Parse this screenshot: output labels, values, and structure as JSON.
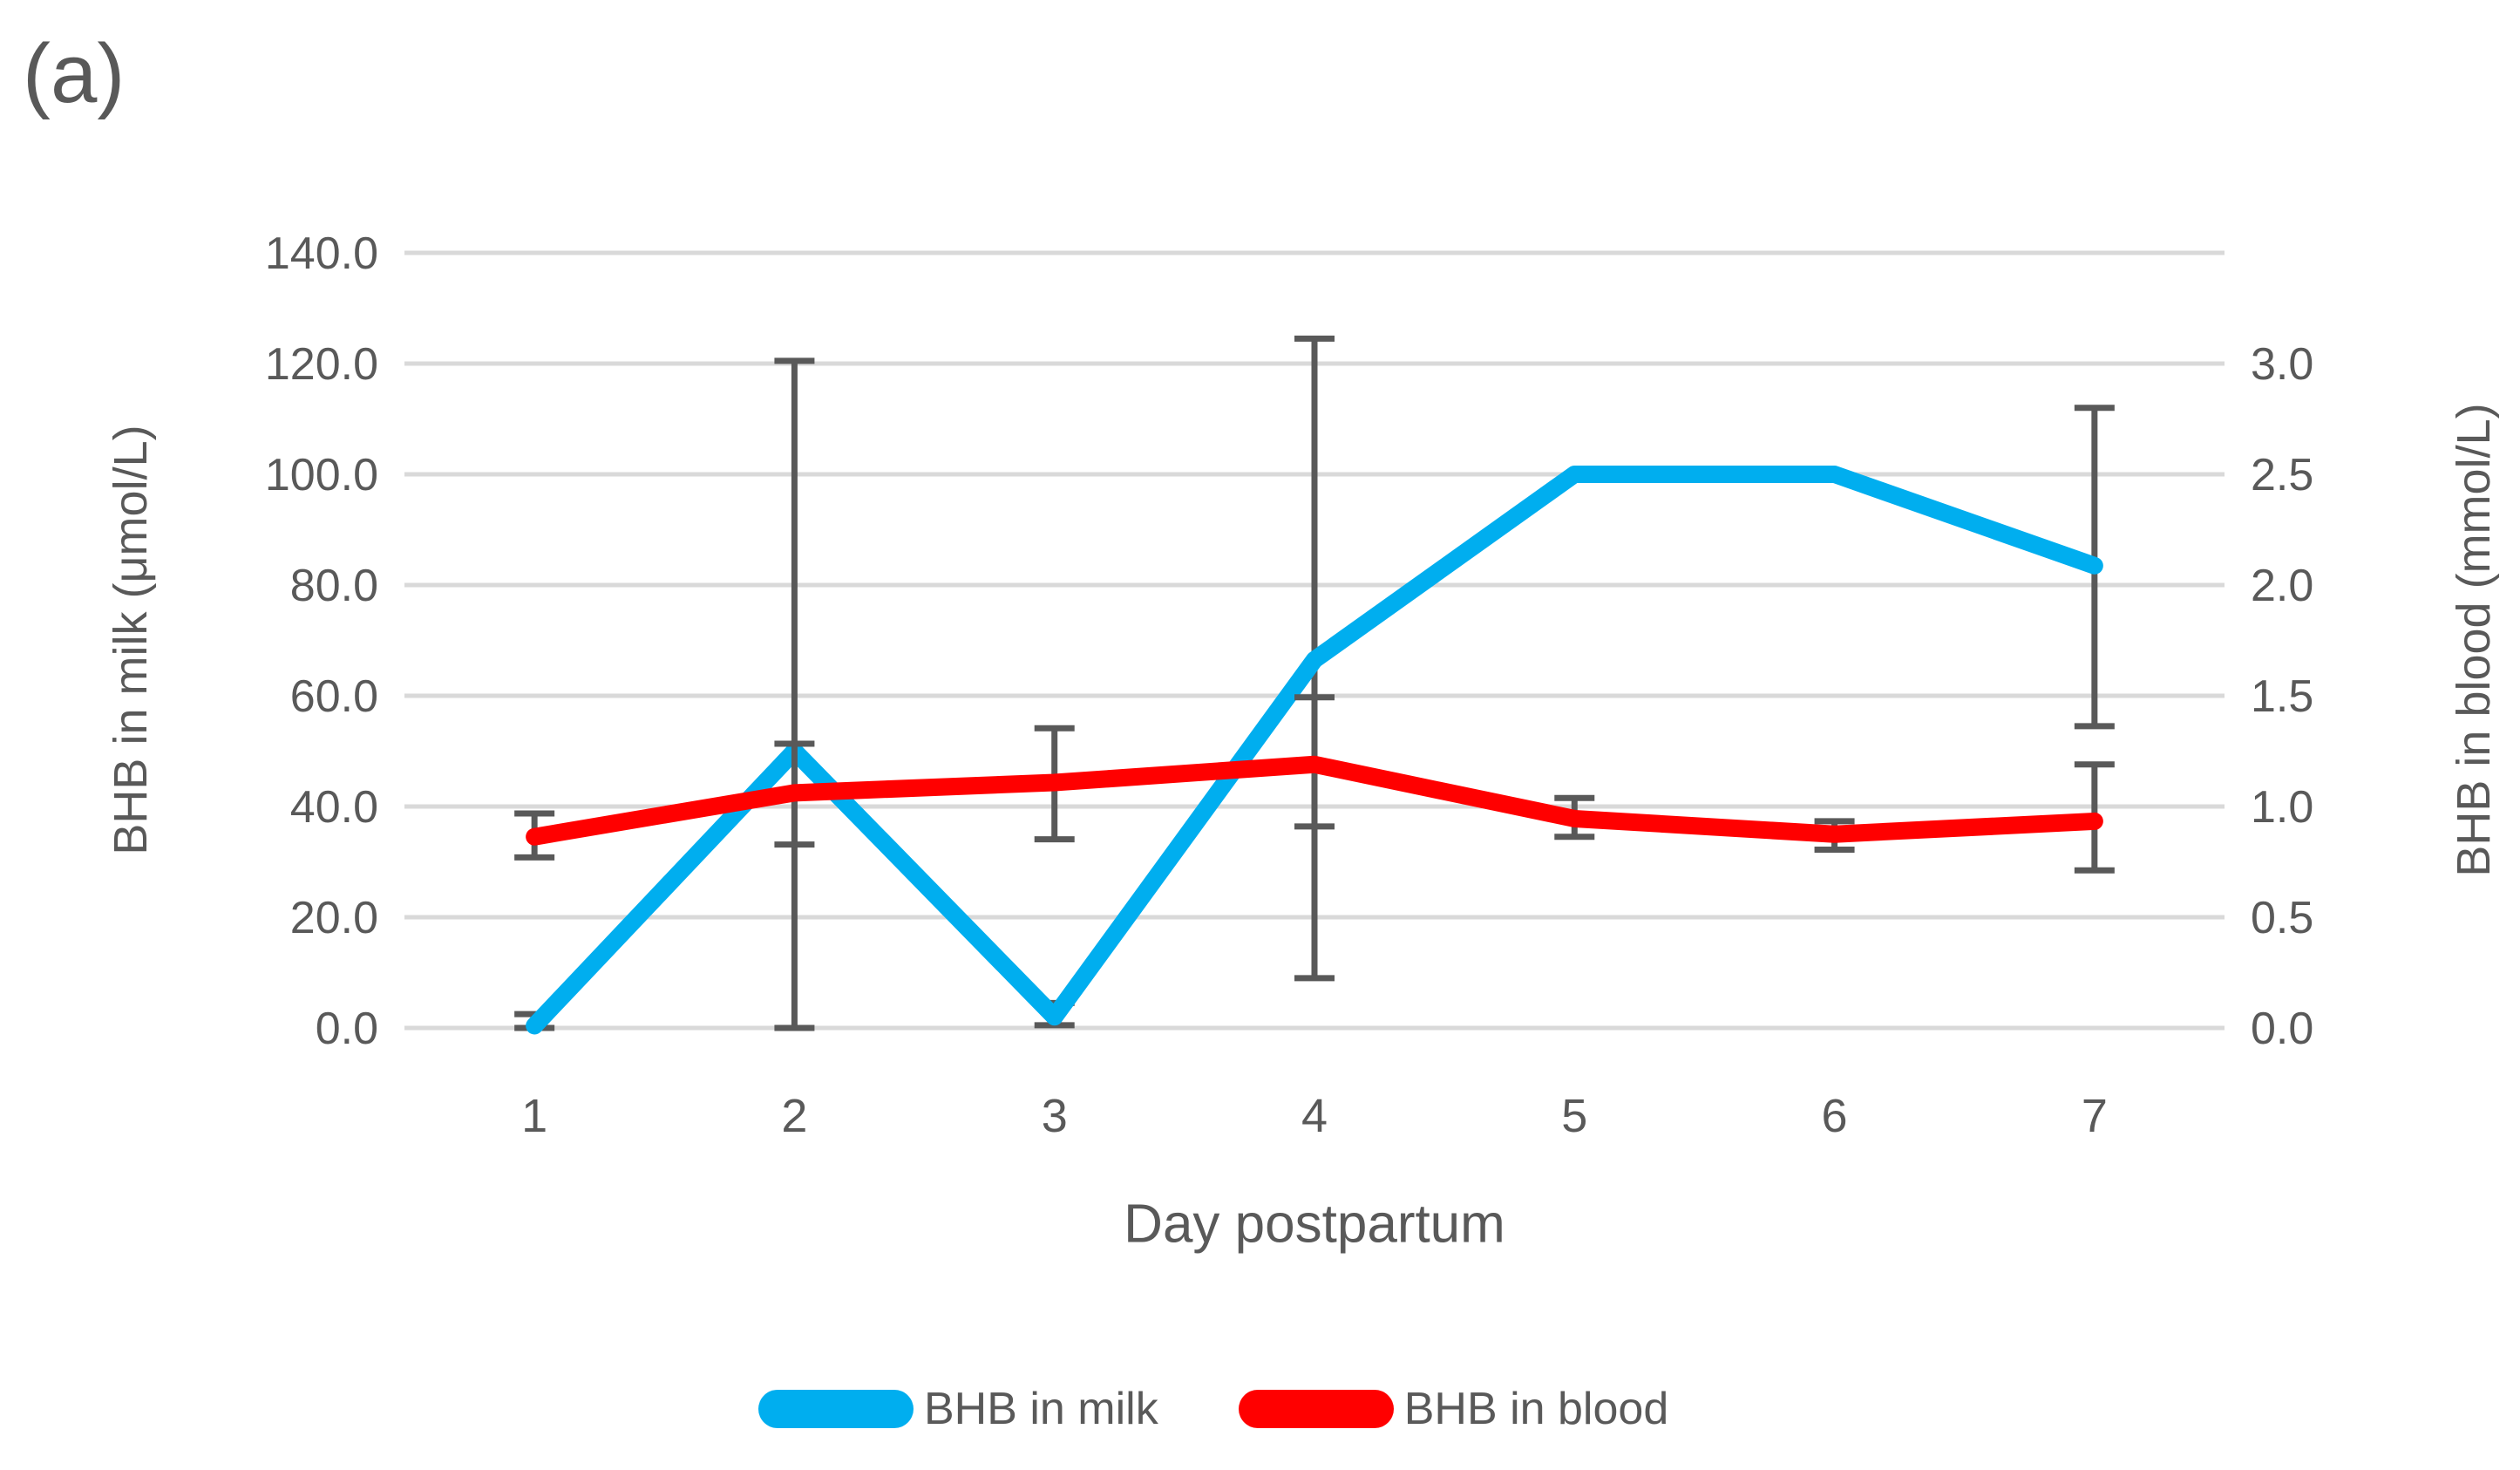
{
  "panel_label": "(a)",
  "chart_data": {
    "type": "line",
    "title": "",
    "xlabel": "Day postpartum",
    "categories": [
      "1",
      "2",
      "3",
      "4",
      "5",
      "6",
      "7"
    ],
    "grid": true,
    "legend_position": "bottom",
    "left_axis": {
      "label": "BHB in milk (μmol/L)",
      "min": 0,
      "max": 140,
      "tick_labels": [
        "0.0",
        "20.0",
        "40.0",
        "60.0",
        "80.0",
        "100.0",
        "120.0",
        "140.0"
      ]
    },
    "right_axis": {
      "label": "BHB in blood (mmol/L)",
      "min": 0,
      "max": 3,
      "tick_labels": [
        "0.0",
        "0.5",
        "1.0",
        "1.5",
        "2.0",
        "2.5",
        "3.0"
      ]
    },
    "series": [
      {
        "name": "BHB in milk",
        "axis": "left",
        "color": "#00AEEF",
        "values": [
          0.4,
          50.0,
          2.0,
          66.5,
          100.0,
          100.0,
          83.5
        ],
        "error_bar_low": [
          0,
          0,
          0.5,
          9.0,
          null,
          null,
          54.5
        ],
        "error_bar_high": [
          2.5,
          120.5,
          4.5,
          124.5,
          null,
          null,
          112.0
        ]
      },
      {
        "name": "BHB in blood",
        "axis": "right",
        "color": "#FF0000",
        "values": [
          0.74,
          0.91,
          0.95,
          1.02,
          0.81,
          0.75,
          0.8
        ],
        "error_bar_low": [
          0.66,
          0.71,
          0.73,
          0.78,
          0.74,
          0.69,
          0.61
        ],
        "error_bar_high": [
          0.83,
          1.1,
          1.16,
          1.28,
          0.89,
          0.8,
          1.02
        ]
      }
    ],
    "styles": {
      "grid_color": "#D9D9D9",
      "text_color": "#595959",
      "error_bar_color": "#595959",
      "milk_color": "#00AEEF",
      "blood_color": "#FF0000"
    }
  },
  "legend": {
    "items": [
      {
        "label": "BHB in milk",
        "color": "#00AEEF"
      },
      {
        "label": "BHB in blood",
        "color": "#FF0000"
      }
    ]
  }
}
